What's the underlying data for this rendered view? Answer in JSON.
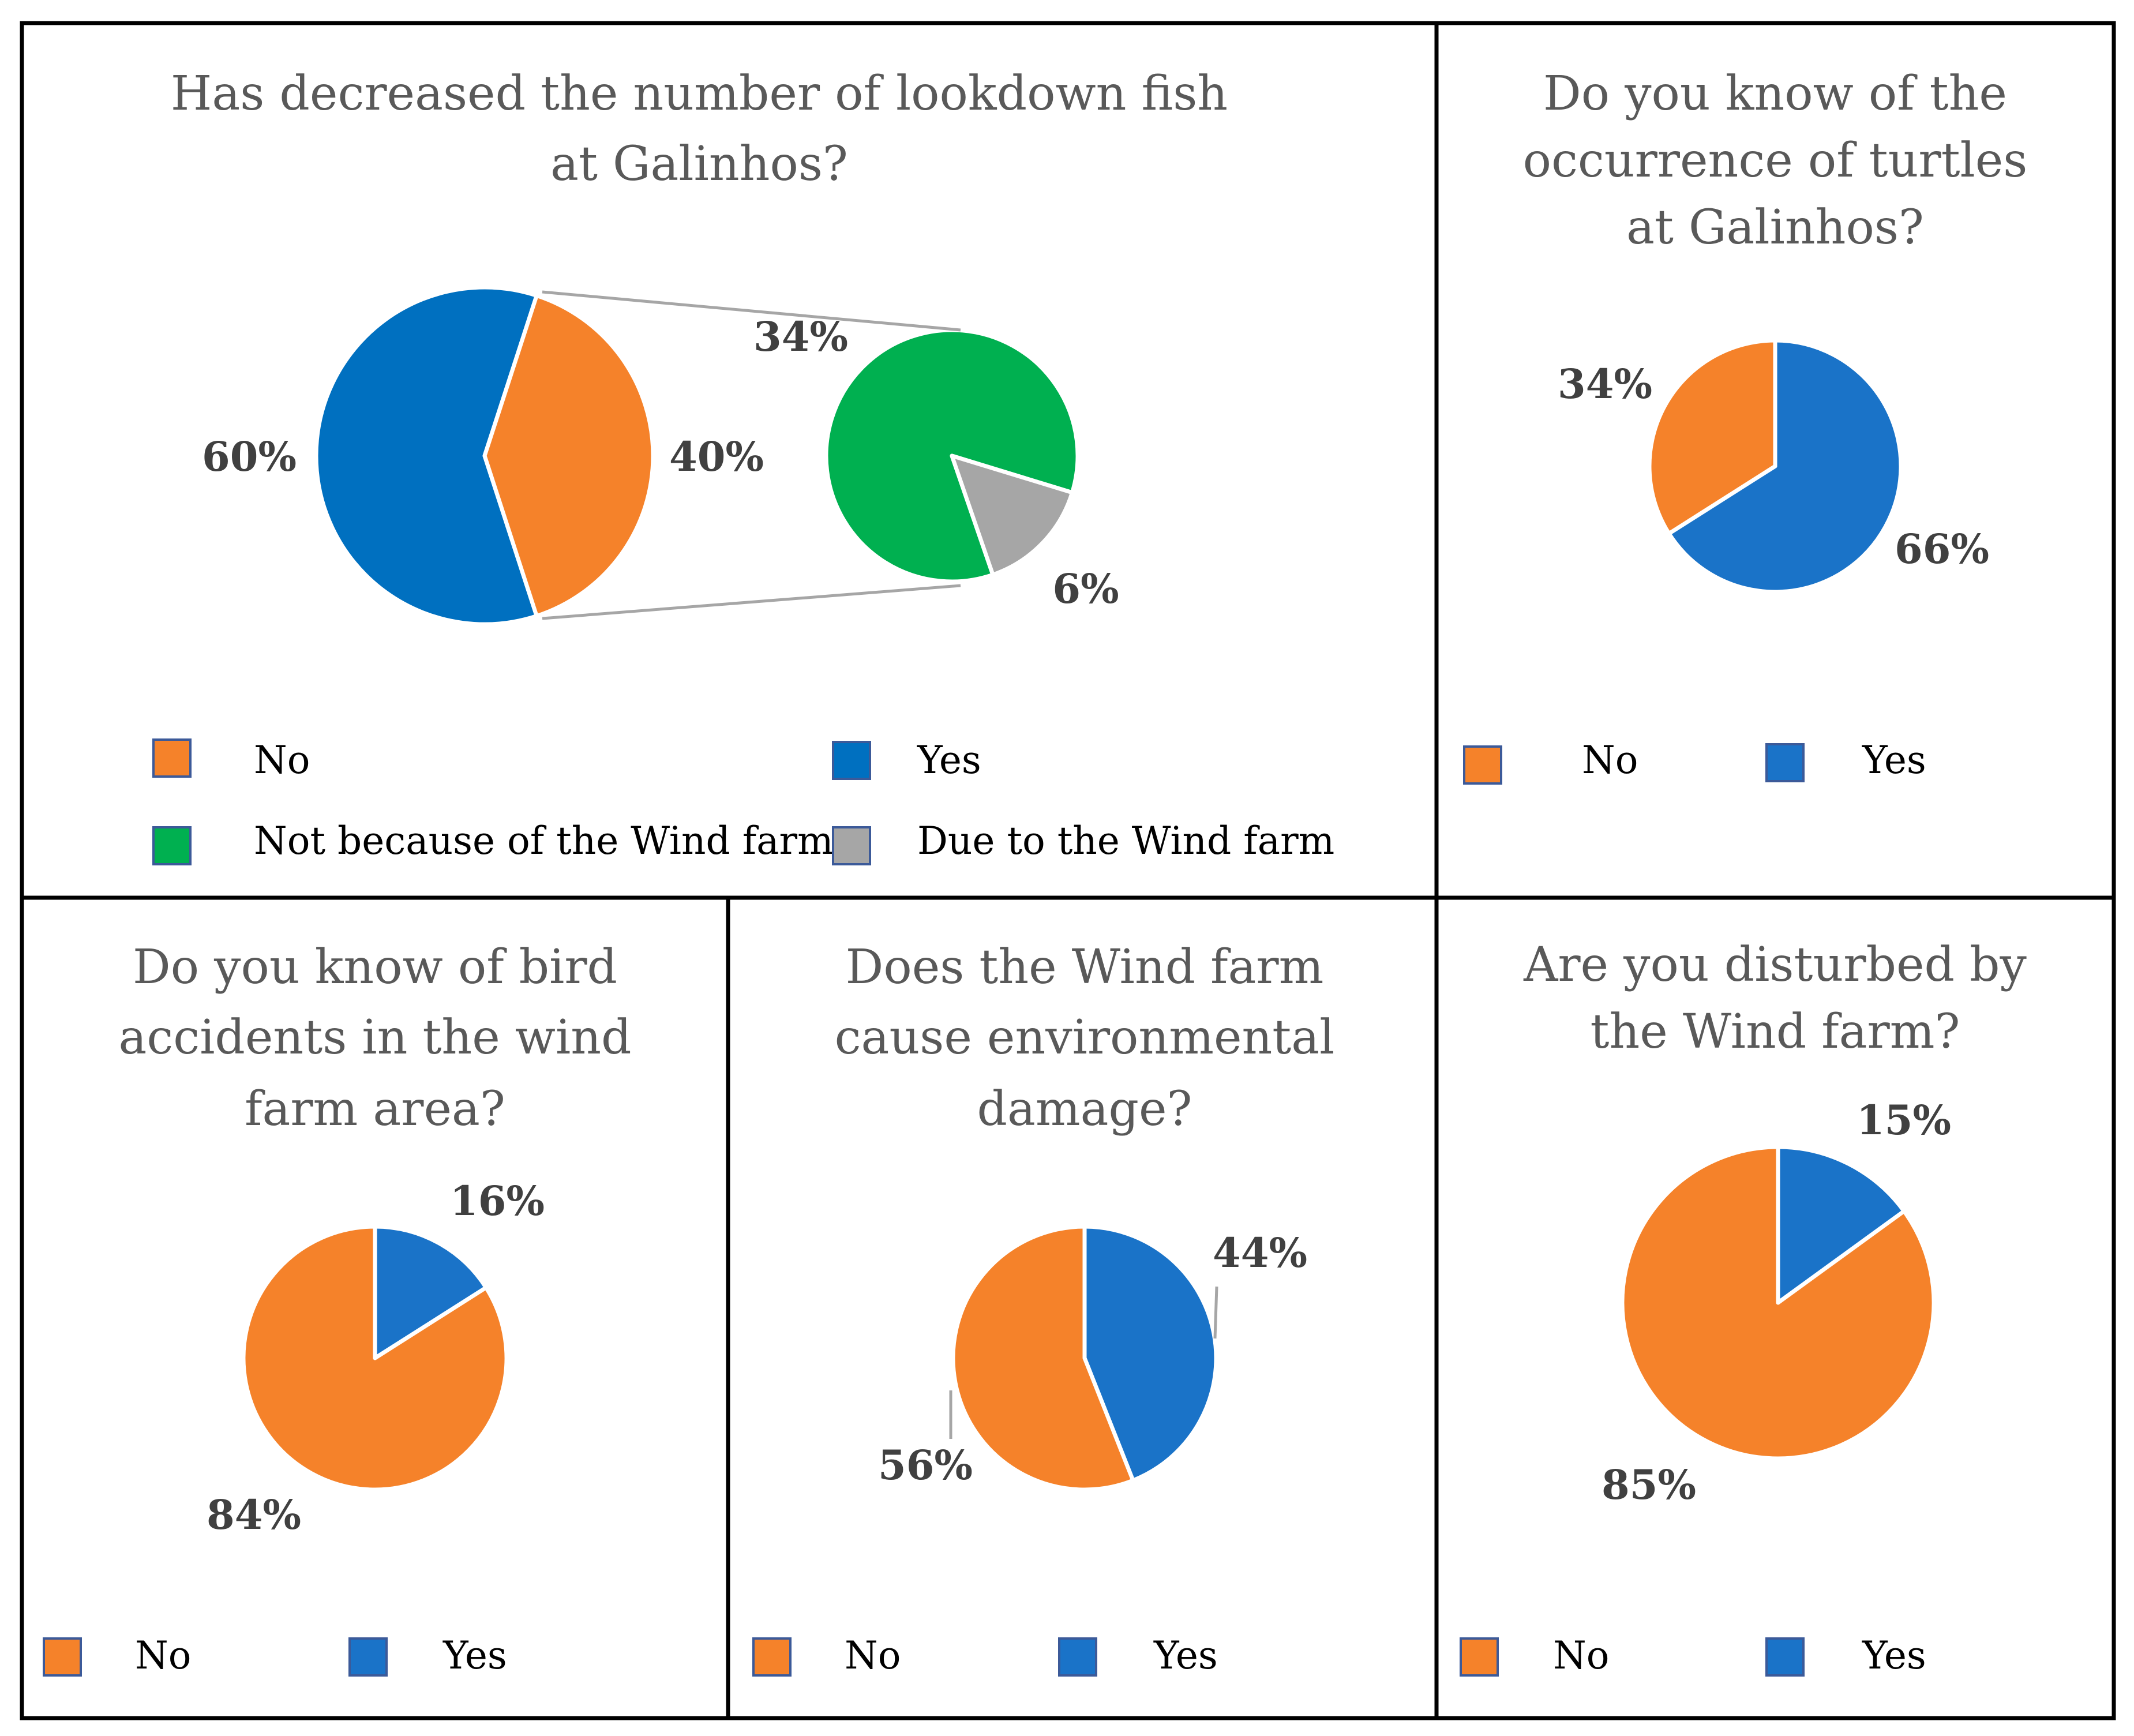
{
  "colors": {
    "no": "#F5822A",
    "yes": "#1A73C8",
    "yes_fish": "#0070C0",
    "not_wind": "#00B050",
    "due_wind": "#A6A6A6",
    "border": "#000000"
  },
  "panels": {
    "fish": {
      "title_lines": [
        "Has decreased the number of lookdown fish",
        "at Galinhos?"
      ],
      "legend": [
        "No",
        "Yes",
        "Not because of the Wind farm",
        "Due to the Wind farm"
      ]
    },
    "turtles": {
      "title_lines": [
        "Do you know of the",
        "occurrence of turtles",
        "at Galinhos?"
      ],
      "legend": [
        "No",
        "Yes"
      ]
    },
    "birds": {
      "title_lines": [
        "Do you know of bird",
        "accidents in the wind",
        "farm area?"
      ],
      "legend": [
        "No",
        "Yes"
      ]
    },
    "damage": {
      "title_lines": [
        "Does the Wind farm",
        "cause environmental",
        "damage?"
      ],
      "legend": [
        "No",
        "Yes"
      ]
    },
    "disturbed": {
      "title_lines": [
        "Are you disturbed by",
        "the Wind farm?"
      ],
      "legend": [
        "No",
        "Yes"
      ]
    }
  },
  "chart_data": [
    {
      "type": "pie",
      "title": "Has decreased the number of lookdown fish at Galinhos?",
      "categories": [
        "Yes",
        "No"
      ],
      "values": [
        60,
        40
      ],
      "labels": [
        "60%",
        "40%"
      ],
      "breakdown_of": "No",
      "breakdown": {
        "categories": [
          "Not because of the Wind farm",
          "Due to the Wind farm"
        ],
        "values": [
          34,
          6
        ],
        "labels": [
          "34%",
          "6%"
        ]
      }
    },
    {
      "type": "pie",
      "title": "Do you know of the occurrence of turtles at Galinhos?",
      "categories": [
        "Yes",
        "No"
      ],
      "values": [
        66,
        34
      ],
      "labels": [
        "66%",
        "34%"
      ]
    },
    {
      "type": "pie",
      "title": "Do you know of bird accidents in the wind farm area?",
      "categories": [
        "Yes",
        "No"
      ],
      "values": [
        16,
        84
      ],
      "labels": [
        "16%",
        "84%"
      ]
    },
    {
      "type": "pie",
      "title": "Does the Wind farm cause environmental damage?",
      "categories": [
        "Yes",
        "No"
      ],
      "values": [
        44,
        56
      ],
      "labels": [
        "44%",
        "56%"
      ]
    },
    {
      "type": "pie",
      "title": "Are you disturbed by the Wind farm?",
      "categories": [
        "Yes",
        "No"
      ],
      "values": [
        15,
        85
      ],
      "labels": [
        "15%",
        "85%"
      ]
    }
  ]
}
